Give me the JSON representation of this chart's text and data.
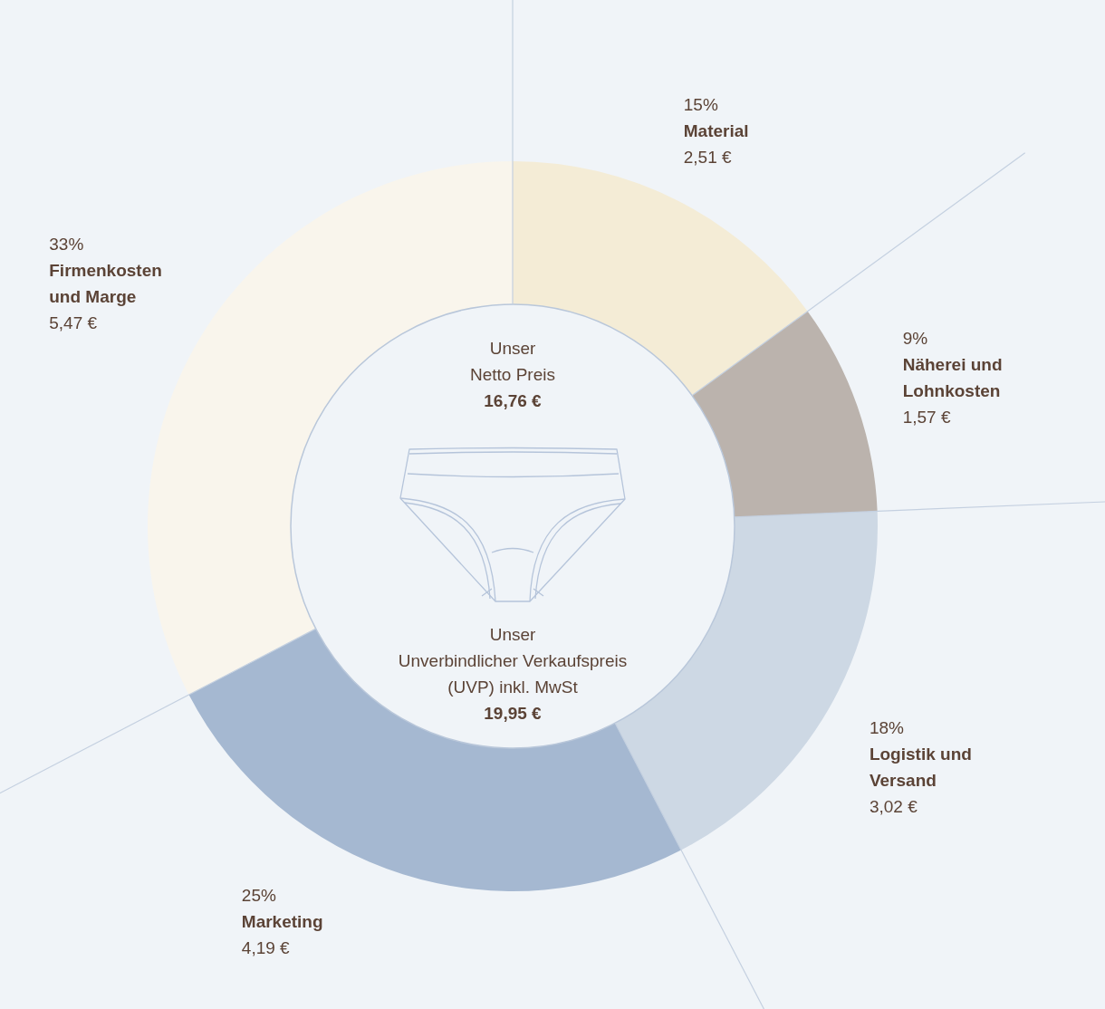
{
  "chart_data": {
    "type": "donut",
    "categories": [
      "Material",
      "Näherei und Lohnkosten",
      "Logistik und Versand",
      "Marketing",
      "Firmenkosten und Marge"
    ],
    "values": [
      2.51,
      1.57,
      3.02,
      4.19,
      5.47
    ],
    "colors": [
      "#f4ecd6",
      "#bbb3ad",
      "#cdd8e4",
      "#a5b8d1",
      "#f9f5ec"
    ],
    "value_labels": [
      "2,51 €",
      "1,57 €",
      "3,02 €",
      "4,19 €",
      "5,47 €"
    ],
    "annotations": [
      "15%",
      "9%",
      "18%",
      "25%",
      "33%",
      "Unser\nNetto Preis",
      "16,76 €",
      "Unser\nUnverbindlicher Verkaufspreis\n(UVP) inkl. MwSt",
      "19,95 €"
    ]
  }
}
